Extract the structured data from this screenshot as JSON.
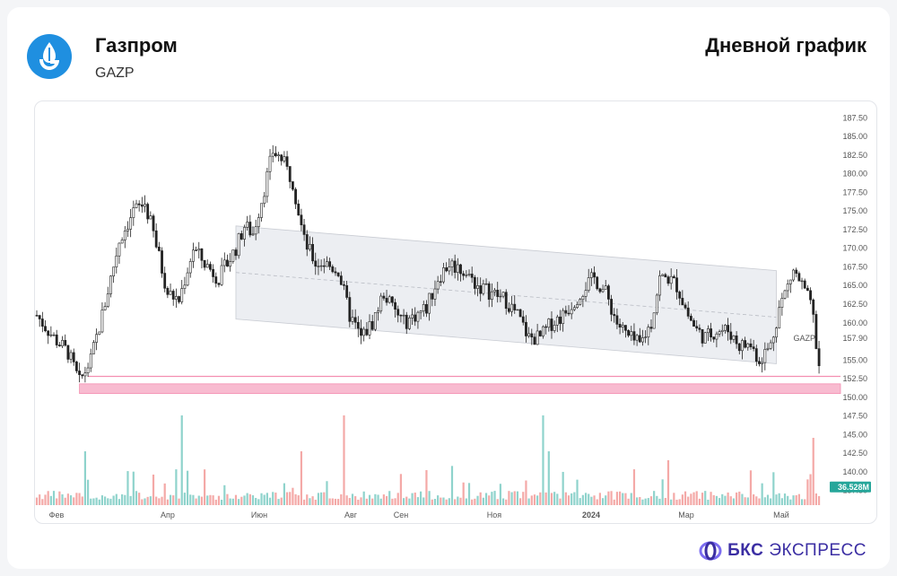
{
  "header": {
    "company": "Газпром",
    "ticker": "GAZP",
    "chart_title": "Дневной график"
  },
  "brand": {
    "bks": "БКС",
    "express": "ЭКСПРЕСС"
  },
  "colors": {
    "up": "#26a69a",
    "down": "#ef5350",
    "up_volume": "#8fd3cc",
    "down_volume": "#f4a9a7",
    "channel_fill": "#eceef2",
    "support_line": "#f48fb1",
    "support_zone": "#f8bbd0",
    "logo": "#1f8fe0",
    "brand": "#3b2ea3"
  },
  "chart_data": {
    "type": "candlestick",
    "title": "Дневной график",
    "instrument": "GAZP",
    "x_ticks": [
      "Фев",
      "Апр",
      "Июн",
      "Авг",
      "Сен",
      "Ноя",
      "2024",
      "Мар",
      "Май"
    ],
    "y_ticks": [
      "187.50",
      "185.00",
      "182.50",
      "180.00",
      "177.50",
      "175.00",
      "172.50",
      "170.00",
      "167.50",
      "165.00",
      "162.50",
      "160.00",
      "157.90",
      "155.00",
      "152.50",
      "150.00",
      "147.50",
      "145.00",
      "142.50",
      "140.00",
      "137.50"
    ],
    "last_price_label": "GAZP",
    "last_price": 157.9,
    "volume_label": "36.528M",
    "ylim": [
      136,
      189
    ],
    "price_path": [
      [
        0,
        161
      ],
      [
        12,
        158
      ],
      [
        22,
        156
      ],
      [
        30,
        152
      ],
      [
        38,
        155
      ],
      [
        46,
        161
      ],
      [
        52,
        166
      ],
      [
        58,
        171
      ],
      [
        68,
        175
      ],
      [
        76,
        176
      ],
      [
        82,
        172
      ],
      [
        92,
        164
      ],
      [
        100,
        163
      ],
      [
        110,
        170
      ],
      [
        118,
        168
      ],
      [
        128,
        166
      ],
      [
        140,
        170
      ],
      [
        146,
        173
      ],
      [
        152,
        172
      ],
      [
        160,
        178
      ],
      [
        166,
        183
      ],
      [
        172,
        182
      ],
      [
        180,
        179
      ],
      [
        188,
        171
      ],
      [
        196,
        168
      ],
      [
        202,
        168
      ],
      [
        212,
        167
      ],
      [
        220,
        161
      ],
      [
        228,
        158
      ],
      [
        236,
        160
      ],
      [
        244,
        164
      ],
      [
        250,
        162
      ],
      [
        258,
        160
      ],
      [
        266,
        161
      ],
      [
        274,
        162
      ],
      [
        282,
        166
      ],
      [
        290,
        168
      ],
      [
        300,
        167
      ],
      [
        310,
        165
      ],
      [
        320,
        164
      ],
      [
        330,
        163
      ],
      [
        338,
        161
      ],
      [
        346,
        158
      ],
      [
        354,
        158
      ],
      [
        362,
        160
      ],
      [
        370,
        161
      ],
      [
        378,
        163
      ],
      [
        386,
        165
      ],
      [
        392,
        166
      ],
      [
        400,
        164
      ],
      [
        408,
        160
      ],
      [
        416,
        158
      ],
      [
        424,
        157
      ],
      [
        432,
        160
      ],
      [
        438,
        166
      ],
      [
        444,
        166
      ],
      [
        450,
        165
      ],
      [
        458,
        161
      ],
      [
        464,
        159
      ],
      [
        470,
        158
      ],
      [
        478,
        159
      ],
      [
        486,
        159
      ],
      [
        494,
        157
      ],
      [
        502,
        157
      ],
      [
        508,
        155
      ],
      [
        516,
        157
      ],
      [
        522,
        162
      ],
      [
        528,
        165
      ],
      [
        532,
        167
      ],
      [
        538,
        165
      ],
      [
        545,
        162
      ],
      [
        550,
        154
      ]
    ],
    "channel": {
      "upper": [
        [
          140,
          173
        ],
        [
          520,
          167
        ]
      ],
      "lower": [
        [
          140,
          160.5
        ],
        [
          520,
          154.5
        ]
      ],
      "midline_dashed": true
    },
    "support_line": 152.8,
    "support_zone": [
      150.5,
      151.8
    ]
  }
}
